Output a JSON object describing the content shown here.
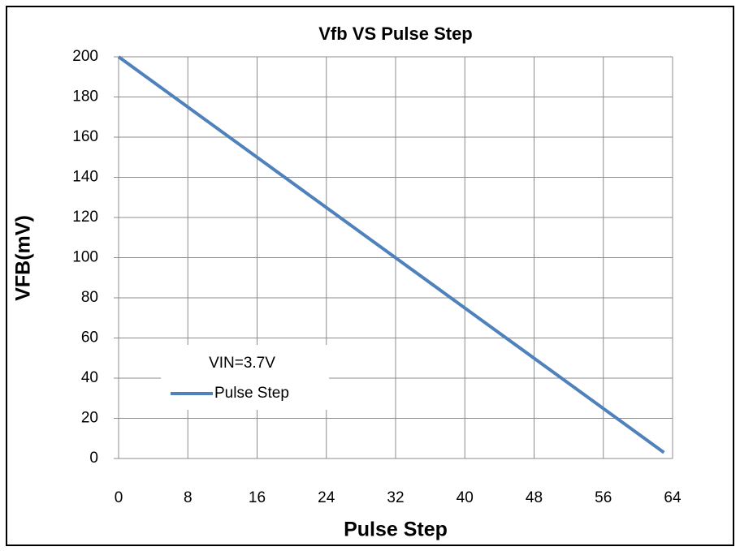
{
  "chart_data": {
    "type": "line",
    "title": "Vfb  VS  Pulse Step",
    "x_label": "Pulse Step",
    "y_label": "VFB(mV)",
    "x": [
      0,
      63
    ],
    "series": [
      {
        "name": "Pulse Step",
        "color": "#4f81bd",
        "values": [
          200,
          3
        ]
      }
    ],
    "xlim": [
      0,
      64
    ],
    "xticks": [
      0,
      8,
      16,
      24,
      32,
      40,
      48,
      56,
      64
    ],
    "ylim": [
      0,
      200
    ],
    "yticks": [
      0,
      20,
      40,
      60,
      80,
      100,
      120,
      140,
      160,
      180,
      200
    ],
    "grid": true,
    "legend_title": "VIN=3.7V",
    "legend_position": "lower left"
  }
}
